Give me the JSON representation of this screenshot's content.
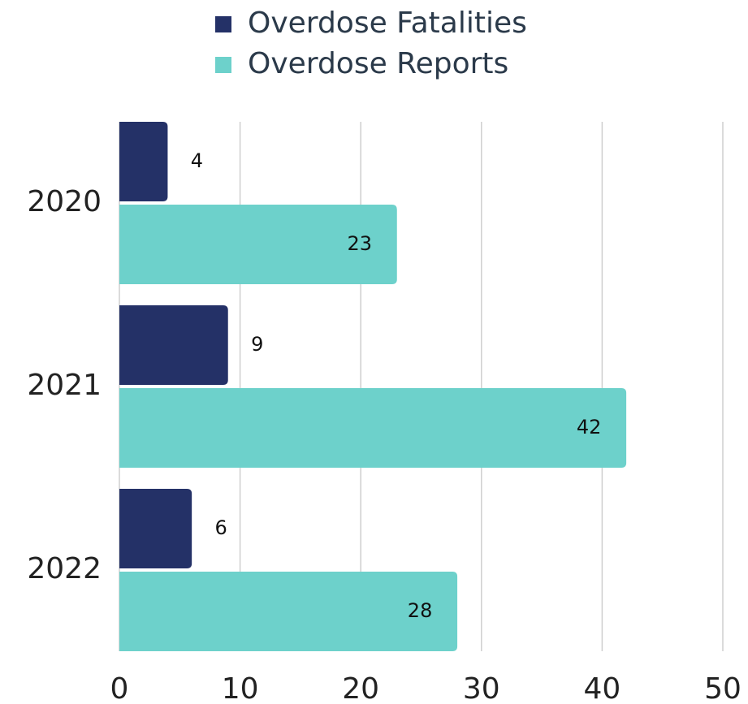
{
  "chart_data": {
    "type": "bar",
    "orientation": "horizontal",
    "categories": [
      "2020",
      "2021",
      "2022"
    ],
    "series": [
      {
        "name": "Overdose Fatalities",
        "color": "#243167",
        "values": [
          4,
          9,
          6
        ]
      },
      {
        "name": "Overdose Reports",
        "color": "#6dd1cb",
        "values": [
          23,
          42,
          28
        ]
      }
    ],
    "xlim": [
      0,
      50
    ],
    "xticks": [
      0,
      10,
      20,
      30,
      40,
      50
    ],
    "grid": true,
    "legend": "top"
  }
}
